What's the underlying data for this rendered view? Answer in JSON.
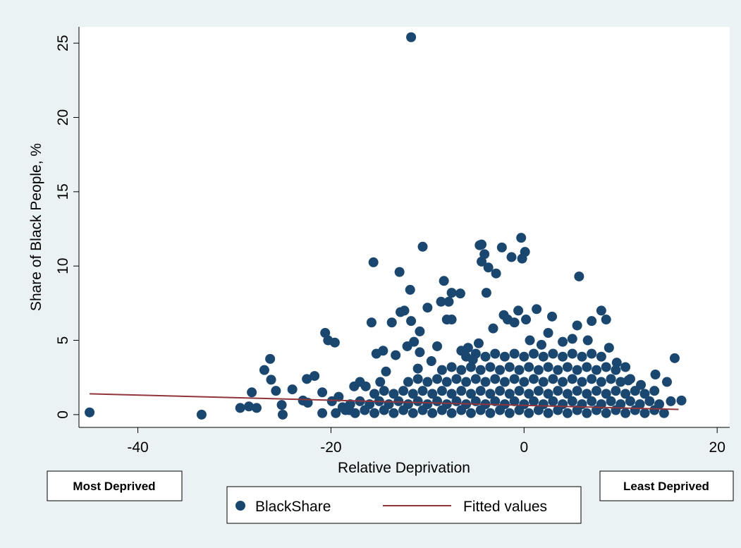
{
  "chart_data": {
    "type": "scatter",
    "x_label": "Relative Deprivation",
    "y_label": "Share of Black People, %",
    "xlim": [
      -46.1,
      21.3
    ],
    "ylim": [
      -0.86,
      26.1
    ],
    "xticks": [
      -40,
      -20,
      0,
      20
    ],
    "yticks": [
      0,
      5,
      10,
      15,
      20,
      25
    ],
    "grid": false,
    "legend": "bottom",
    "annotations": [
      "Most Deprived",
      "Least Deprived"
    ],
    "series": [
      {
        "name": "BlackShare",
        "type": "scatter",
        "color": "#1a476f",
        "x": [
          -45,
          -33.4,
          -29.4,
          -28.5,
          -28.2,
          -27.7,
          -26.9,
          -26.3,
          -26.2,
          -25.7,
          -25.1,
          -25,
          -24,
          -22.9,
          -22.4,
          -22.5,
          -21.7,
          -20.9,
          -20.9,
          -20.6,
          -20.3,
          -19.9,
          -19.6,
          -19.2,
          -18.8,
          -18.1,
          -17.6,
          -17,
          -16.4,
          -15.8,
          -15.6,
          -15.3,
          -14.9,
          -14.6,
          -14.3,
          -13.7,
          -13.3,
          -12.9,
          -12.8,
          -12.4,
          -12.1,
          -11.8,
          -11.7,
          -11.7,
          -11.4,
          -11,
          -10.8,
          -10.8,
          -10.5,
          -10,
          -9.6,
          -9,
          -8.6,
          -8.3,
          -8,
          -7.8,
          -7.5,
          -7.5,
          -6.6,
          -6.5,
          -5.8,
          -5.3,
          -4.7,
          -4.6,
          -4.4,
          -4.4,
          -4.1,
          -3.9,
          -3.7,
          -3.2,
          -2.9,
          -2.3,
          -2.1,
          -1.7,
          -1.3,
          -1,
          -0.6,
          -0.3,
          -0.2,
          0.1,
          0.2,
          0.6,
          1.3,
          1.8,
          2.5,
          2.9,
          4,
          5,
          5.5,
          5.7,
          6.6,
          7,
          8,
          8.5,
          8.8,
          9.6,
          10.8,
          12.1,
          13.6,
          14.8,
          15.2,
          15.6,
          16.3,
          -19.5,
          -18.5,
          -17.5,
          -16.5,
          -15.5,
          -14.5,
          -13.5,
          -12.5,
          -11.5,
          -10.5,
          -9.5,
          -8.5,
          -7.5,
          -6.5,
          -5.5,
          -4.5,
          -3.5,
          -2.5,
          -1.5,
          -0.5,
          0.5,
          1.5,
          2.5,
          3.5,
          4.5,
          5.5,
          6.5,
          7.5,
          8.5,
          9.5,
          10.5,
          11.5,
          12.5,
          13.5,
          14.5,
          -18,
          -17,
          -16,
          -15,
          -14,
          -13,
          -12,
          -11,
          -10,
          -9,
          -8,
          -7,
          -6,
          -5,
          -4,
          -3,
          -2,
          -1,
          0,
          1,
          2,
          3,
          4,
          5,
          6,
          7,
          8,
          9,
          10,
          11,
          12,
          13,
          14,
          -15.5,
          -14.5,
          -13.5,
          -12.5,
          -11.5,
          -10.5,
          -9.5,
          -8.5,
          -7.5,
          -6.5,
          -5.5,
          -4.5,
          -3.5,
          -2.5,
          -1.5,
          -0.5,
          0.5,
          1.5,
          2.5,
          3.5,
          4.5,
          5.5,
          6.5,
          7.5,
          8.5,
          9.5,
          10.5,
          11.5,
          12.5,
          13.5,
          -12,
          -11,
          -10,
          -9,
          -8,
          -7,
          -6,
          -5,
          -4,
          -3,
          -2,
          -1,
          0,
          1,
          2,
          3,
          4,
          5,
          6,
          7,
          8,
          9,
          10,
          11,
          -8.5,
          -7.5,
          -6.5,
          -5.5,
          -4.5,
          -3.5,
          -2.5,
          -1.5,
          -0.5,
          0.5,
          1.5,
          2.5,
          3.5,
          4.5,
          5.5,
          6.5,
          7.5,
          8.5,
          9.5,
          10.5,
          -6,
          -5,
          -4,
          -3,
          -2,
          -1,
          0,
          1,
          2,
          3,
          4,
          5,
          6,
          7,
          8
        ],
        "values": [
          0.15,
          0,
          0.45,
          0.55,
          1.5,
          0.45,
          3,
          3.75,
          2.35,
          1.6,
          0.65,
          0,
          1.7,
          0.95,
          0.8,
          2.4,
          2.6,
          1.5,
          0.1,
          5.5,
          5,
          0.9,
          4.85,
          1.2,
          0.5,
          0.3,
          1.9,
          2.2,
          1.9,
          6.2,
          10.25,
          4.1,
          2.2,
          4.3,
          2.9,
          6.2,
          4,
          9.6,
          6.9,
          7,
          4.6,
          8.4,
          6.3,
          25.4,
          4.9,
          3.1,
          4.2,
          5.6,
          11.3,
          7.2,
          3.6,
          4.6,
          7.6,
          9,
          6.4,
          7.6,
          8.2,
          6.4,
          8.15,
          4.3,
          4.5,
          3.7,
          4.8,
          11.4,
          11.45,
          10.3,
          10.8,
          8.2,
          9.9,
          5.8,
          9.5,
          11.25,
          6.7,
          6.4,
          10.6,
          6.2,
          7,
          11.9,
          10.5,
          10.95,
          6.4,
          5,
          7.1,
          4.7,
          5.5,
          6.6,
          4.9,
          5.1,
          6,
          9.3,
          5,
          6.3,
          7,
          6.4,
          4.5,
          3.5,
          2.3,
          2,
          2.7,
          2.2,
          0.9,
          3.8,
          0.95,
          0.1,
          0.3,
          0.1,
          0.3,
          0.1,
          0.3,
          0.1,
          0.3,
          0.1,
          0.3,
          0.1,
          0.3,
          0.1,
          0.3,
          0.1,
          0.3,
          0.1,
          0.3,
          0.1,
          0.3,
          0.1,
          0.3,
          0.1,
          0.3,
          0.1,
          0.3,
          0.1,
          0.3,
          0.1,
          0.3,
          0.1,
          0.3,
          0.1,
          0.3,
          0.1,
          0.7,
          0.9,
          0.7,
          0.9,
          0.7,
          0.9,
          0.7,
          0.9,
          0.7,
          0.9,
          0.7,
          0.9,
          0.7,
          0.9,
          0.7,
          0.9,
          0.7,
          0.9,
          0.7,
          0.9,
          0.7,
          0.9,
          0.7,
          0.9,
          0.7,
          0.9,
          0.7,
          0.9,
          0.7,
          0.9,
          0.7,
          0.9,
          0.7,
          1.4,
          1.6,
          1.4,
          1.6,
          1.4,
          1.6,
          1.4,
          1.6,
          1.4,
          1.6,
          1.4,
          1.6,
          1.4,
          1.6,
          1.4,
          1.6,
          1.4,
          1.6,
          1.4,
          1.6,
          1.4,
          1.6,
          1.4,
          1.6,
          1.4,
          1.6,
          1.4,
          1.6,
          1.4,
          1.6,
          2.2,
          2.4,
          2.2,
          2.4,
          2.2,
          2.4,
          2.2,
          2.4,
          2.2,
          2.4,
          2.2,
          2.4,
          2.2,
          2.4,
          2.2,
          2.4,
          2.2,
          2.4,
          2.2,
          2.4,
          2.2,
          2.4,
          2.2,
          2.4,
          3,
          3.2,
          3,
          3.2,
          3,
          3.2,
          3,
          3.2,
          3,
          3.2,
          3,
          3.2,
          3,
          3.2,
          3,
          3.2,
          3,
          3.2,
          3,
          3.2,
          3.9,
          4.1,
          3.9,
          4.1,
          3.9,
          4.1,
          3.9,
          4.1,
          3.9,
          4.1,
          3.9,
          4.1,
          3.9,
          4.1,
          3.9
        ]
      },
      {
        "name": "Fitted values",
        "type": "line",
        "color": "#90353b",
        "x": [
          -45,
          16
        ],
        "values": [
          1.4,
          0.35
        ]
      }
    ]
  }
}
